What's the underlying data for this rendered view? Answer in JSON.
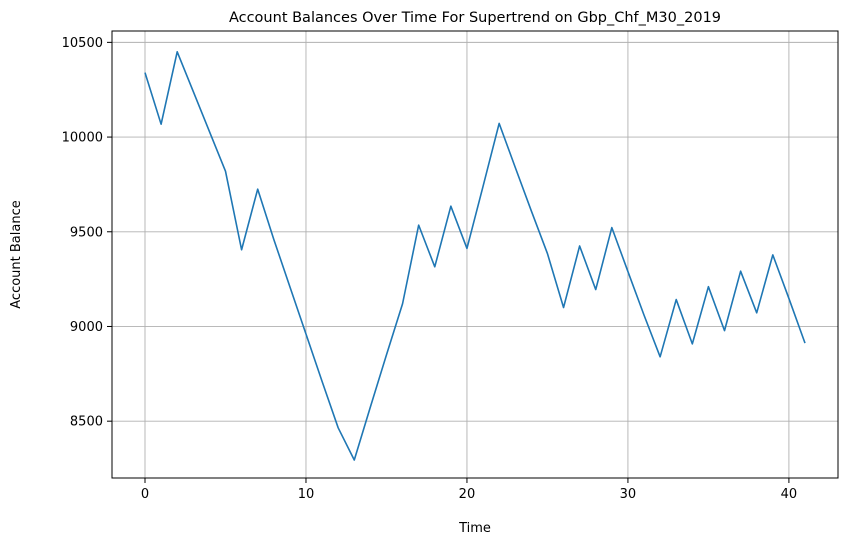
{
  "chart_data": {
    "type": "line",
    "title": "Account Balances Over Time For Supertrend on Gbp_Chf_M30_2019",
    "xlabel": "Time",
    "ylabel": "Account Balance",
    "xlim": [
      -2.05,
      43.05
    ],
    "ylim": [
      8200,
      10560
    ],
    "xticks": [
      0,
      10,
      20,
      30,
      40
    ],
    "yticks": [
      8500,
      9000,
      9500,
      10000,
      10500
    ],
    "grid": true,
    "series": [
      {
        "color": "#1f77b4",
        "x": [
          0,
          1,
          2,
          3,
          4,
          5,
          6,
          7,
          8,
          9,
          10,
          11,
          12,
          13,
          14,
          15,
          16,
          17,
          18,
          19,
          20,
          21,
          22,
          23,
          24,
          25,
          26,
          27,
          28,
          29,
          30,
          31,
          32,
          33,
          34,
          35,
          36,
          37,
          38,
          39,
          40,
          41
        ],
        "values": [
          10340,
          10068,
          10450,
          10240,
          10030,
          9820,
          9405,
          9725,
          9460,
          9210,
          8960,
          8710,
          8465,
          8295,
          8575,
          8850,
          9120,
          9535,
          9315,
          9635,
          9412,
          9740,
          10072,
          9840,
          9610,
          9385,
          9100,
          9425,
          9195,
          9522,
          9290,
          9060,
          8840,
          9142,
          8908,
          9210,
          8978,
          9292,
          9072,
          9378,
          9148,
          8912
        ]
      }
    ]
  }
}
